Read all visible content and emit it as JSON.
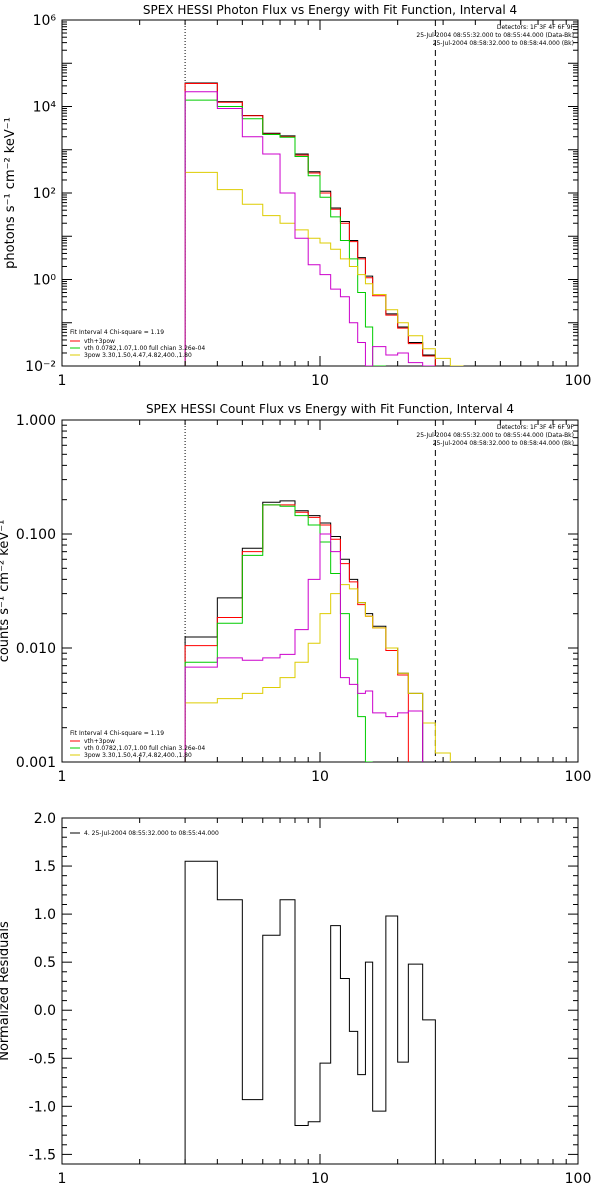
{
  "chart_data": [
    {
      "type": "line",
      "title": "SPEX HESSI Photon Flux vs Energy with Fit Function, Interval 4",
      "ylabel": "photons s⁻¹ cm⁻² keV⁻¹",
      "xlabel": "",
      "xscale": "log",
      "yscale": "log",
      "xlim": [
        1,
        100
      ],
      "ylim": [
        0.01,
        1000000
      ],
      "x_ticks": [
        1,
        10,
        100
      ],
      "x_tick_labels": [
        "1",
        "10",
        "100"
      ],
      "y_ticks": [
        0.01,
        1,
        100,
        10000,
        1000000
      ],
      "y_tick_labels": [
        "10⁻²",
        "10⁰",
        "10²",
        "10⁴",
        "10⁶"
      ],
      "vlines": [
        {
          "x": 3.0,
          "style": "dotted"
        },
        {
          "x": 28.0,
          "style": "dashed"
        }
      ],
      "header": [
        "Detectors: 1F 3F 4F 6F 9F",
        "25-Jul-2004 08:55:32.000 to 08:55:44.000 (Data-Bk)",
        "25-Jul-2004 08:58:32.000 to 08:58:44.000 (Bk)"
      ],
      "legend_title": "Fit Interval  4   Chi-square = 1.19",
      "legend": [
        {
          "label": "vth+3pow",
          "color": "#ff0000"
        },
        {
          "label": "vth 0.0782,1.07,1.00  full chian 3.26e-04",
          "color": "#00cc00"
        },
        {
          "label": "3pow  3.30,1.50,4.47,4.82,400.,1.80",
          "color": "#ddcc00"
        }
      ],
      "bin_edges": [
        3,
        4,
        5,
        6,
        7,
        8,
        9,
        10,
        11,
        12,
        13,
        14,
        15,
        16,
        18,
        20,
        22,
        25,
        28,
        32,
        36
      ],
      "series": [
        {
          "name": "Data-Bk",
          "color": "#000000",
          "values": [
            35000,
            13000,
            6200,
            2400,
            2100,
            800,
            310,
            110,
            45,
            22,
            8,
            3.2,
            1.2,
            0.45,
            0.16,
            0.08,
            0.035,
            0.018,
            null,
            null
          ]
        },
        {
          "name": "vth+3pow",
          "color": "#ff0000",
          "values": [
            34000,
            12500,
            6100,
            2300,
            2000,
            750,
            290,
            100,
            42,
            20,
            7.5,
            3.0,
            1.1,
            0.42,
            0.15,
            0.075,
            0.033,
            0.017,
            null,
            null
          ]
        },
        {
          "name": "vth",
          "color": "#00cc00",
          "values": [
            14000,
            10000,
            5200,
            2250,
            1950,
            700,
            250,
            80,
            28,
            8,
            3.0,
            0.5,
            0.08,
            0.008,
            null,
            null,
            null,
            null,
            null,
            null
          ]
        },
        {
          "name": "3pow",
          "color": "#ddcc00",
          "values": [
            300,
            120,
            55,
            30,
            20,
            14,
            9,
            7,
            5,
            3,
            2,
            1.3,
            0.8,
            0.45,
            0.2,
            0.1,
            0.05,
            0.025,
            0.015,
            0.01
          ]
        },
        {
          "name": "Bk",
          "color": "#cc00cc",
          "values": [
            22000,
            9000,
            2000,
            800,
            100,
            9,
            2.2,
            1.3,
            0.6,
            0.4,
            0.1,
            0.035,
            0.01,
            0.028,
            0.018,
            0.02,
            0.012,
            0.01,
            null,
            null
          ]
        }
      ]
    },
    {
      "type": "line",
      "title": "SPEX HESSI Count Flux vs Energy with Fit Function, Interval 4",
      "ylabel": "counts s⁻¹ cm⁻² keV⁻¹",
      "xlabel": "",
      "xscale": "log",
      "yscale": "log",
      "xlim": [
        1,
        100
      ],
      "ylim": [
        0.001,
        1.0
      ],
      "x_ticks": [
        1,
        10,
        100
      ],
      "x_tick_labels": [
        "1",
        "10",
        "100"
      ],
      "y_ticks": [
        0.001,
        0.01,
        0.1,
        1.0
      ],
      "y_tick_labels": [
        "0.001",
        "0.010",
        "0.100",
        "1.000"
      ],
      "vlines": [
        {
          "x": 3.0,
          "style": "dotted"
        },
        {
          "x": 28.0,
          "style": "dashed"
        }
      ],
      "header": [
        "Detectors: 1F 3F 4F 6F 9F",
        "25-Jul-2004 08:55:32.000 to 08:55:44.000 (Data-Bk)",
        "25-Jul-2004 08:58:32.000 to 08:58:44.000 (Bk)"
      ],
      "legend_title": "Fit Interval  4   Chi-square = 1.19",
      "legend": [
        {
          "label": "vth+3pow",
          "color": "#ff0000"
        },
        {
          "label": "vth 0.0782,1.07,1.00  full chian 3.26e-04",
          "color": "#00cc00"
        },
        {
          "label": "3pow  3.30,1.50,4.47,4.82,400.,1.80",
          "color": "#ddcc00"
        }
      ],
      "bin_edges": [
        3,
        4,
        5,
        6,
        7,
        8,
        9,
        10,
        11,
        12,
        13,
        14,
        15,
        16,
        18,
        20,
        22,
        25,
        28,
        32,
        36
      ],
      "series": [
        {
          "name": "Data-Bk",
          "color": "#000000",
          "values": [
            0.0125,
            0.0275,
            0.075,
            0.19,
            0.195,
            0.16,
            0.145,
            0.125,
            0.095,
            0.06,
            0.04,
            0.025,
            0.02,
            0.0155,
            0.01,
            0.006,
            0.004,
            null,
            null,
            null
          ]
        },
        {
          "name": "vth+3pow",
          "color": "#ff0000",
          "values": [
            0.0105,
            0.0185,
            0.07,
            0.18,
            0.18,
            0.155,
            0.14,
            0.12,
            0.09,
            0.055,
            0.038,
            0.024,
            0.019,
            0.015,
            0.0095,
            0.0058,
            null,
            null,
            null,
            null
          ]
        },
        {
          "name": "vth",
          "color": "#00cc00",
          "values": [
            0.0075,
            0.0165,
            0.065,
            0.18,
            0.175,
            0.145,
            0.12,
            0.085,
            0.045,
            0.02,
            0.008,
            0.0025,
            0.001,
            null,
            null,
            null,
            null,
            null,
            null,
            null
          ]
        },
        {
          "name": "3pow",
          "color": "#ddcc00",
          "values": [
            0.0033,
            0.0036,
            0.004,
            0.0045,
            0.0055,
            0.0075,
            0.011,
            0.02,
            0.03,
            0.036,
            0.033,
            0.025,
            0.019,
            0.015,
            0.01,
            0.006,
            0.004,
            0.0022,
            0.0012,
            null
          ]
        },
        {
          "name": "Bk",
          "color": "#cc00cc",
          "values": [
            0.0068,
            0.0082,
            0.0078,
            0.0082,
            0.0088,
            0.0145,
            0.04,
            0.1,
            0.07,
            0.0055,
            0.0048,
            0.004,
            0.0042,
            0.0027,
            0.0025,
            0.0027,
            0.0028,
            null,
            null,
            null
          ]
        }
      ]
    },
    {
      "type": "line",
      "title": "",
      "ylabel": "Normalized Residuals",
      "xlabel": "",
      "xscale": "log",
      "yscale": "linear",
      "xlim": [
        1,
        100
      ],
      "ylim": [
        -1.6,
        2.0
      ],
      "x_ticks": [
        1,
        10,
        100
      ],
      "x_tick_labels": [
        "1",
        "10",
        "100"
      ],
      "y_ticks": [
        -1.5,
        -1.0,
        -0.5,
        0.0,
        0.5,
        1.0,
        1.5,
        2.0
      ],
      "y_tick_labels": [
        "-1.5",
        "-1.0",
        "-0.5",
        "0.0",
        "0.5",
        "1.0",
        "1.5",
        "2.0"
      ],
      "legend": [
        {
          "label": "4. 25-Jul-2004 08:55:32.000 to 08:55:44.000",
          "color": "#000000"
        }
      ],
      "bin_edges": [
        3,
        4,
        5,
        6,
        7,
        8,
        9,
        10,
        11,
        12,
        13,
        14,
        15,
        16,
        18,
        20,
        22,
        25,
        28
      ],
      "series": [
        {
          "name": "",
          "color": "#000000",
          "values": [
            1.55,
            1.15,
            -0.93,
            0.78,
            1.15,
            -1.2,
            -1.16,
            -0.55,
            0.88,
            0.33,
            -0.22,
            -0.67,
            0.5,
            -1.05,
            0.98,
            -0.54,
            0.48,
            -0.1
          ]
        }
      ]
    }
  ]
}
